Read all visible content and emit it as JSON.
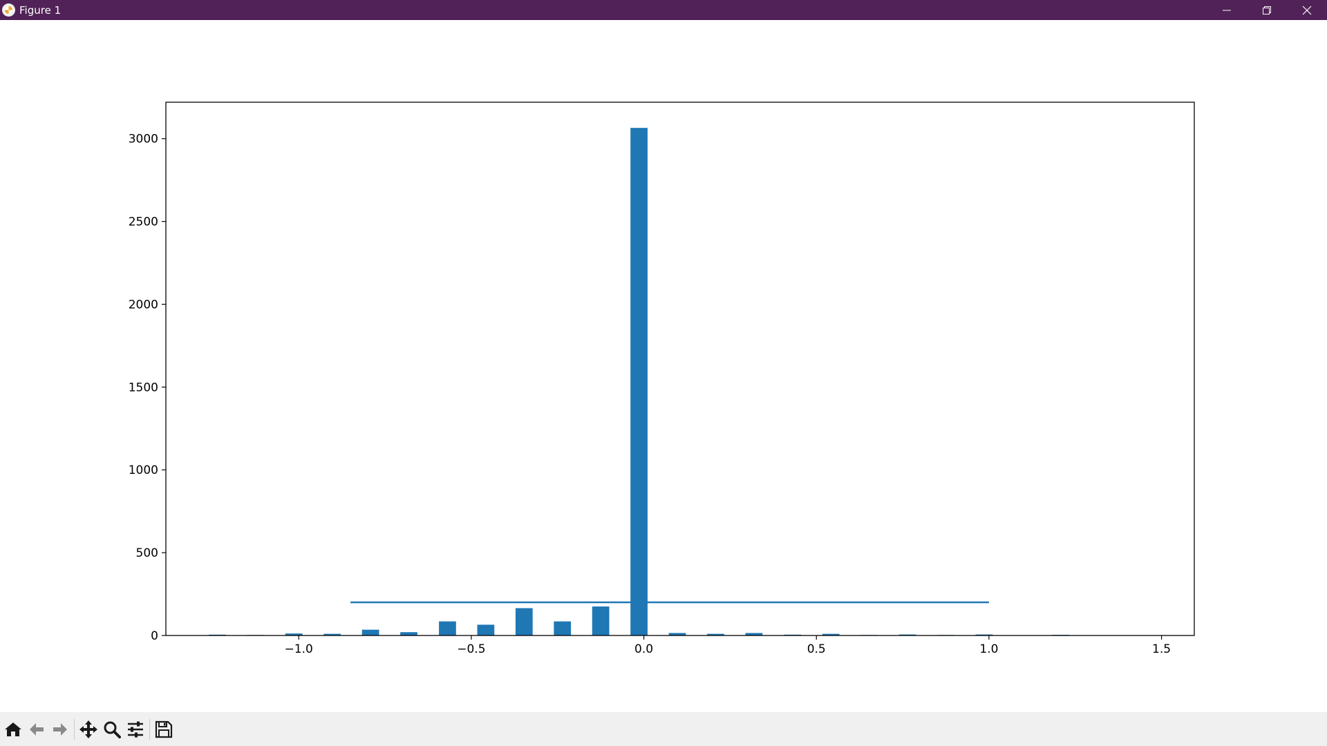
{
  "window": {
    "title": "Figure 1",
    "icon": "matplotlib-logo-icon",
    "controls": [
      "minimize-icon",
      "restore-icon",
      "close-icon"
    ],
    "titlebar_color": "#512257"
  },
  "toolbar": {
    "buttons": [
      "home-icon",
      "back-icon",
      "forward-icon",
      "pan-icon",
      "zoom-icon",
      "configure-subplots-icon",
      "save-icon"
    ]
  },
  "chart_data": {
    "type": "bar",
    "title": "",
    "xlabel": "",
    "ylabel": "",
    "xlim": [
      -1.385,
      1.595
    ],
    "ylim": [
      0,
      3220
    ],
    "xticks": [
      -1.0,
      -0.5,
      0.0,
      0.5,
      1.0,
      1.5
    ],
    "xtick_labels": [
      "−1.0",
      "−0.5",
      "0.0",
      "0.5",
      "1.0",
      "1.5"
    ],
    "yticks": [
      0,
      500,
      1000,
      1500,
      2000,
      2500,
      3000
    ],
    "ytick_labels": [
      "0",
      "500",
      "1000",
      "1500",
      "2000",
      "2500",
      "3000"
    ],
    "bar_color": "#1f77b4",
    "bar_width": 0.0495,
    "bars": [
      {
        "x": -1.236,
        "value": 5
      },
      {
        "x": -1.125,
        "value": 3
      },
      {
        "x": -1.014,
        "value": 12
      },
      {
        "x": -0.903,
        "value": 10
      },
      {
        "x": -0.792,
        "value": 35
      },
      {
        "x": -0.681,
        "value": 20
      },
      {
        "x": -0.569,
        "value": 85
      },
      {
        "x": -0.458,
        "value": 65
      },
      {
        "x": -0.347,
        "value": 165
      },
      {
        "x": -0.236,
        "value": 85
      },
      {
        "x": -0.125,
        "value": 175
      },
      {
        "x": -0.014,
        "value": 3065
      },
      {
        "x": 0.097,
        "value": 15
      },
      {
        "x": 0.208,
        "value": 10
      },
      {
        "x": 0.319,
        "value": 15
      },
      {
        "x": 0.431,
        "value": 5
      },
      {
        "x": 0.542,
        "value": 10
      },
      {
        "x": 0.653,
        "value": 3
      },
      {
        "x": 0.764,
        "value": 6
      },
      {
        "x": 0.875,
        "value": 3
      },
      {
        "x": 0.986,
        "value": 6
      },
      {
        "x": 1.208,
        "value": 4
      },
      {
        "x": 1.319,
        "value": 2
      },
      {
        "x": 1.431,
        "value": 2
      }
    ],
    "hline": {
      "y": 200,
      "xmin": -0.85,
      "xmax": 1.0,
      "color": "#1f77b4"
    },
    "grid": false,
    "legend": "none"
  }
}
